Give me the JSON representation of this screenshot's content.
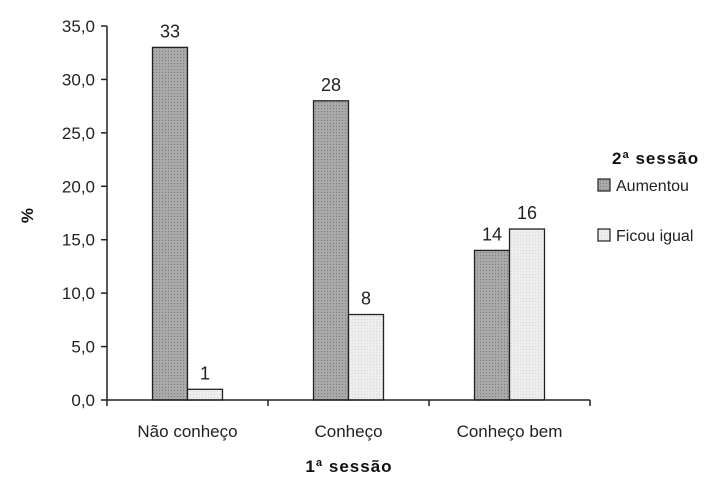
{
  "chart_data": {
    "type": "bar",
    "categories": [
      "Não conheço",
      "Conheço",
      "Conheço bem"
    ],
    "series": [
      {
        "name": "Aumentou",
        "values": [
          33,
          28,
          14
        ],
        "labels": [
          "33",
          "28",
          "14"
        ],
        "color": "#a9a9a9"
      },
      {
        "name": "Ficou igual",
        "values": [
          1,
          8,
          16
        ],
        "labels": [
          "1",
          "8",
          "16"
        ],
        "color": "#ededed"
      }
    ],
    "xlabel": "1ª sessão",
    "ylabel": "%",
    "ylim": [
      0,
      35
    ],
    "yticks": [
      0,
      5,
      10,
      15,
      20,
      25,
      30,
      35
    ],
    "ytick_labels": [
      "0,0",
      "5,0",
      "10,0",
      "15,0",
      "20,0",
      "25,0",
      "30,0",
      "35,0"
    ],
    "legend_title": "2ª sessão",
    "legend_position": "right",
    "grid": false
  }
}
